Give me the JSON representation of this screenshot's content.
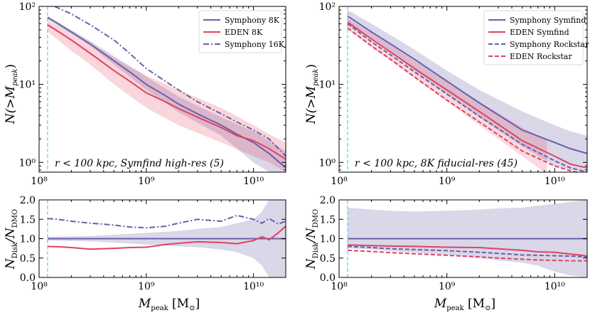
{
  "chart_data": [
    {
      "id": "top-left",
      "type": "line",
      "xscale": "log",
      "yscale": "log",
      "xlim": [
        100000000.0,
        20000000000.0
      ],
      "ylim": [
        0.75,
        100
      ],
      "ylabel": "N(>M_peak)",
      "yticks": [
        {
          "v": 1,
          "label": "10⁰"
        },
        {
          "v": 10,
          "label": "10¹"
        },
        {
          "v": 100,
          "label": "10²"
        }
      ],
      "xticks": [
        {
          "v": 100000000.0,
          "label": "10⁸"
        },
        {
          "v": 1000000000.0,
          "label": "10⁹"
        },
        {
          "v": 10000000000.0,
          "label": "10¹⁰"
        }
      ],
      "annotation": "r < 100 kpc,  Symfind high-res (5)",
      "legend_position": "top-right",
      "series": [
        {
          "name": "Symphony 8K",
          "color": "#6a5fa8",
          "dash": "solid",
          "x": [
            120000000.0,
            150000000.0,
            200000000.0,
            300000000.0,
            500000000.0,
            700000000.0,
            1000000000.0,
            1500000000.0,
            2000000000.0,
            3000000000.0,
            5000000000.0,
            7000000000.0,
            10000000000.0,
            14000000000.0,
            20000000000.0
          ],
          "y": [
            72,
            60,
            47,
            33,
            20,
            14.5,
            10,
            7.2,
            5.6,
            4.2,
            3.0,
            2.3,
            1.8,
            1.3,
            0.85
          ]
        },
        {
          "name": "EDEN 8K",
          "color": "#e0435f",
          "dash": "solid",
          "x": [
            120000000.0,
            150000000.0,
            200000000.0,
            300000000.0,
            500000000.0,
            700000000.0,
            1000000000.0,
            1500000000.0,
            2000000000.0,
            3000000000.0,
            5000000000.0,
            7000000000.0,
            10000000000.0,
            14000000000.0,
            20000000000.0
          ],
          "y": [
            58,
            48,
            37,
            25,
            15,
            11,
            7.8,
            6.0,
            4.9,
            3.8,
            2.8,
            2.2,
            1.9,
            1.5,
            1.1
          ]
        },
        {
          "name": "Symphony 16K",
          "color": "#6a5fa8",
          "dash": "dashdot",
          "x": [
            140000000.0,
            200000000.0,
            300000000.0,
            500000000.0,
            700000000.0,
            1000000000.0,
            1500000000.0,
            2000000000.0,
            3000000000.0,
            5000000000.0,
            7000000000.0,
            10000000000.0,
            14000000000.0,
            20000000000.0
          ],
          "y": [
            100,
            80,
            58,
            37,
            25,
            16,
            11,
            8.5,
            6.0,
            4.2,
            3.3,
            2.6,
            2.0,
            1.2
          ]
        }
      ],
      "bands": [
        {
          "name": "Symphony 8K spread",
          "color": "#6a5fa8",
          "opacity": 0.25,
          "x": [
            120000000.0,
            200000000.0,
            300000000.0,
            500000000.0,
            1000000000.0,
            2000000000.0,
            5000000000.0,
            10000000000.0,
            14000000000.0,
            20000000000.0
          ],
          "lo": [
            68,
            45,
            31,
            18,
            8.5,
            4.4,
            2.2,
            1.0,
            0.75,
            0.75
          ],
          "hi": [
            76,
            50,
            36,
            23,
            12.5,
            7.0,
            3.8,
            2.5,
            1.9,
            1.4
          ]
        },
        {
          "name": "EDEN 8K spread",
          "color": "#e0435f",
          "opacity": 0.22,
          "x": [
            120000000.0,
            200000000.0,
            300000000.0,
            500000000.0,
            1000000000.0,
            2000000000.0,
            5000000000.0,
            10000000000.0,
            14000000000.0,
            20000000000.0
          ],
          "lo": [
            48,
            27,
            18,
            10,
            5.0,
            3.0,
            1.8,
            1.2,
            1.0,
            0.75
          ],
          "hi": [
            66,
            47,
            34,
            22,
            13,
            8.5,
            5.0,
            3.0,
            2.3,
            1.8
          ]
        }
      ]
    },
    {
      "id": "top-right",
      "type": "line",
      "xscale": "log",
      "yscale": "log",
      "xlim": [
        100000000.0,
        20000000000.0
      ],
      "ylim": [
        0.75,
        100
      ],
      "ylabel": "N(>M_peak)",
      "yticks": [
        {
          "v": 1,
          "label": "10⁰"
        },
        {
          "v": 10,
          "label": "10¹"
        },
        {
          "v": 100,
          "label": "10²"
        }
      ],
      "xticks": [
        {
          "v": 100000000.0,
          "label": "10⁸"
        },
        {
          "v": 1000000000.0,
          "label": "10⁹"
        },
        {
          "v": 10000000000.0,
          "label": "10¹⁰"
        }
      ],
      "annotation": "r < 100 kpc,  8K fiducial-res (45)",
      "legend_position": "top-right",
      "series": [
        {
          "name": "Symphony Symfind",
          "color": "#6a5fa8",
          "dash": "solid",
          "x": [
            120000000.0,
            200000000.0,
            300000000.0,
            500000000.0,
            1000000000.0,
            2000000000.0,
            5000000000.0,
            10000000000.0,
            14000000000.0,
            20000000000.0
          ],
          "y": [
            75,
            47,
            33,
            21,
            11,
            5.8,
            2.6,
            1.8,
            1.5,
            1.3
          ]
        },
        {
          "name": "EDEN Symfind",
          "color": "#e0435f",
          "dash": "solid",
          "x": [
            120000000.0,
            200000000.0,
            300000000.0,
            500000000.0,
            1000000000.0,
            2000000000.0,
            5000000000.0,
            10000000000.0,
            14000000000.0,
            20000000000.0
          ],
          "y": [
            63,
            38,
            26,
            16,
            8.5,
            4.5,
            1.9,
            1.2,
            0.95,
            0.85
          ]
        },
        {
          "name": "Symphony Rockstar",
          "color": "#6a5fa8",
          "dash": "dashed",
          "x": [
            120000000.0,
            200000000.0,
            300000000.0,
            500000000.0,
            1000000000.0,
            2000000000.0,
            5000000000.0,
            10000000000.0,
            14000000000.0,
            20000000000.0
          ],
          "y": [
            60,
            35,
            24,
            14.5,
            7.5,
            3.9,
            1.7,
            1.05,
            0.85,
            0.75
          ]
        },
        {
          "name": "EDEN Rockstar",
          "color": "#e0435f",
          "dash": "dashed",
          "x": [
            120000000.0,
            200000000.0,
            300000000.0,
            500000000.0,
            1000000000.0,
            2000000000.0,
            5000000000.0,
            10000000000.0,
            14000000000.0,
            20000000000.0
          ],
          "y": [
            53,
            31,
            21,
            12.5,
            6.3,
            3.3,
            1.4,
            0.9,
            0.78,
            0.7
          ]
        }
      ],
      "bands": [
        {
          "name": "Symphony spread",
          "color": "#6a5fa8",
          "opacity": 0.25,
          "x": [
            120000000.0,
            200000000.0,
            300000000.0,
            500000000.0,
            1000000000.0,
            2000000000.0,
            5000000000.0,
            10000000000.0,
            14000000000.0,
            20000000000.0
          ],
          "lo": [
            58,
            38,
            26,
            15,
            7.5,
            3.8,
            1.6,
            0.9,
            0.8,
            0.75
          ],
          "hi": [
            90,
            60,
            43,
            28,
            15,
            8.5,
            4.5,
            3.0,
            2.5,
            2.2
          ]
        },
        {
          "name": "EDEN spread",
          "color": "#e0435f",
          "opacity": 0.2,
          "x": [
            120000000.0,
            200000000.0,
            300000000.0,
            500000000.0,
            1000000000.0,
            2000000000.0,
            5000000000.0,
            8000000000.0,
            8500000000.0
          ],
          "lo": [
            50,
            30,
            20,
            12,
            6.0,
            3.0,
            1.2,
            0.75,
            0.75
          ],
          "hi": [
            70,
            45,
            32,
            20,
            11,
            6.0,
            2.8,
            2.0,
            1.9
          ]
        }
      ]
    },
    {
      "id": "bottom-left",
      "type": "line",
      "xscale": "log",
      "yscale": "linear",
      "xlim": [
        100000000.0,
        20000000000.0
      ],
      "ylim": [
        0,
        2
      ],
      "xlabel": "M_peak [M_⊙]",
      "ylabel": "N_Disk / N_DMO",
      "yticks": [
        {
          "v": 0,
          "label": "0.0"
        },
        {
          "v": 0.5,
          "label": "0.5"
        },
        {
          "v": 1,
          "label": "1.0"
        },
        {
          "v": 1.5,
          "label": "1.5"
        },
        {
          "v": 2,
          "label": "2.0"
        }
      ],
      "xticks": [
        {
          "v": 100000000.0,
          "label": "10⁸"
        },
        {
          "v": 1000000000.0,
          "label": "10⁹"
        },
        {
          "v": 10000000000.0,
          "label": "10¹⁰"
        }
      ],
      "series": [
        {
          "name": "Symphony 8K",
          "color": "#6a5fa8",
          "dash": "solid",
          "x": [
            120000000.0,
            20000000000.0
          ],
          "y": [
            1.0,
            1.0
          ]
        },
        {
          "name": "EDEN 8K",
          "color": "#e0435f",
          "dash": "solid",
          "x": [
            120000000.0,
            150000000.0,
            200000000.0,
            300000000.0,
            500000000.0,
            700000000.0,
            1000000000.0,
            1500000000.0,
            2000000000.0,
            3000000000.0,
            5000000000.0,
            7000000000.0,
            10000000000.0,
            12000000000.0,
            14000000000.0,
            17000000000.0,
            20000000000.0
          ],
          "y": [
            0.8,
            0.79,
            0.77,
            0.73,
            0.75,
            0.77,
            0.78,
            0.85,
            0.88,
            0.92,
            0.9,
            0.87,
            0.95,
            1.05,
            0.97,
            1.15,
            1.32
          ]
        },
        {
          "name": "Symphony 16K",
          "color": "#6a5fa8",
          "dash": "dashdot",
          "x": [
            120000000.0,
            150000000.0,
            200000000.0,
            300000000.0,
            500000000.0,
            700000000.0,
            1000000000.0,
            1500000000.0,
            2000000000.0,
            3000000000.0,
            5000000000.0,
            7000000000.0,
            10000000000.0,
            12000000000.0,
            14000000000.0,
            17000000000.0,
            20000000000.0
          ],
          "y": [
            1.52,
            1.5,
            1.45,
            1.4,
            1.35,
            1.3,
            1.28,
            1.32,
            1.4,
            1.5,
            1.45,
            1.6,
            1.5,
            1.4,
            1.52,
            1.38,
            1.45
          ]
        }
      ],
      "bands": [
        {
          "name": "Symphony 8K ratio spread",
          "color": "#6a5fa8",
          "opacity": 0.25,
          "x": [
            120000000.0,
            200000000.0,
            300000000.0,
            500000000.0,
            1000000000.0,
            2000000000.0,
            3000000000.0,
            5000000000.0,
            7000000000.0,
            10000000000.0,
            12000000000.0,
            14000000000.0,
            17000000000.0,
            20000000000.0
          ],
          "lo": [
            0.95,
            0.94,
            0.93,
            0.9,
            0.85,
            0.8,
            0.78,
            0.72,
            0.65,
            0.5,
            0.3,
            0.0,
            0.0,
            0.0
          ],
          "hi": [
            1.05,
            1.06,
            1.07,
            1.1,
            1.15,
            1.2,
            1.25,
            1.3,
            1.4,
            1.5,
            1.7,
            2.0,
            2.0,
            2.0
          ]
        }
      ]
    },
    {
      "id": "bottom-right",
      "type": "line",
      "xscale": "log",
      "yscale": "linear",
      "xlim": [
        100000000.0,
        20000000000.0
      ],
      "ylim": [
        0,
        2
      ],
      "xlabel": "M_peak [M_⊙]",
      "ylabel": "N_Disk / N_DMO",
      "yticks": [
        {
          "v": 0,
          "label": "0.0"
        },
        {
          "v": 0.5,
          "label": "0.5"
        },
        {
          "v": 1,
          "label": "1.0"
        },
        {
          "v": 1.5,
          "label": "1.5"
        },
        {
          "v": 2,
          "label": "2.0"
        }
      ],
      "xticks": [
        {
          "v": 100000000.0,
          "label": "10⁸"
        },
        {
          "v": 1000000000.0,
          "label": "10⁹"
        },
        {
          "v": 10000000000.0,
          "label": "10¹⁰"
        }
      ],
      "series": [
        {
          "name": "Symphony Symfind",
          "color": "#6a5fa8",
          "dash": "solid",
          "x": [
            120000000.0,
            20000000000.0
          ],
          "y": [
            1.0,
            1.0
          ]
        },
        {
          "name": "EDEN Symfind",
          "color": "#e0435f",
          "dash": "solid",
          "x": [
            120000000.0,
            200000000.0,
            300000000.0,
            500000000.0,
            1000000000.0,
            2000000000.0,
            3000000000.0,
            5000000000.0,
            7000000000.0,
            10000000000.0,
            14000000000.0,
            17000000000.0,
            20000000000.0
          ],
          "y": [
            0.84,
            0.82,
            0.81,
            0.8,
            0.78,
            0.77,
            0.74,
            0.7,
            0.66,
            0.65,
            0.6,
            0.58,
            0.55
          ]
        },
        {
          "name": "Symphony Rockstar",
          "color": "#6a5fa8",
          "dash": "dashed",
          "x": [
            120000000.0,
            200000000.0,
            300000000.0,
            500000000.0,
            1000000000.0,
            2000000000.0,
            3000000000.0,
            5000000000.0,
            7000000000.0,
            10000000000.0,
            14000000000.0,
            20000000000.0
          ],
          "y": [
            0.8,
            0.77,
            0.74,
            0.72,
            0.69,
            0.65,
            0.62,
            0.58,
            0.57,
            0.56,
            0.55,
            0.53
          ]
        },
        {
          "name": "EDEN Rockstar",
          "color": "#e0435f",
          "dash": "dashed",
          "x": [
            120000000.0,
            200000000.0,
            300000000.0,
            500000000.0,
            1000000000.0,
            2000000000.0,
            3000000000.0,
            5000000000.0,
            7000000000.0,
            10000000000.0,
            14000000000.0,
            20000000000.0
          ],
          "y": [
            0.7,
            0.67,
            0.64,
            0.61,
            0.57,
            0.53,
            0.5,
            0.47,
            0.45,
            0.44,
            0.43,
            0.43
          ]
        }
      ],
      "bands": [
        {
          "name": "Symphony ratio spread",
          "color": "#6a5fa8",
          "opacity": 0.25,
          "x": [
            120000000.0,
            200000000.0,
            300000000.0,
            500000000.0,
            1000000000.0,
            2000000000.0,
            3000000000.0,
            5000000000.0,
            7000000000.0,
            10000000000.0,
            14000000000.0,
            20000000000.0
          ],
          "lo": [
            0.75,
            0.72,
            0.68,
            0.64,
            0.58,
            0.5,
            0.44,
            0.38,
            0.3,
            0.15,
            0.05,
            0.0
          ],
          "hi": [
            1.8,
            1.75,
            1.72,
            1.7,
            1.72,
            1.75,
            1.78,
            1.8,
            1.85,
            1.9,
            1.95,
            2.0
          ]
        }
      ]
    }
  ],
  "reference_line": {
    "x": 120000000.0,
    "color": "#5fd3e6"
  },
  "axis_labels": {
    "top_y_main": "N(>M",
    "top_y_sub": "peak",
    "top_y_end": ")",
    "bottom_y_num": "N",
    "bottom_y_num_sub": "Disk",
    "bottom_y_sep": "/N",
    "bottom_y_den_sub": "DMO",
    "x_main": "M",
    "x_sub": "peak",
    "x_unit": "[M",
    "x_unit_sub": "⊙",
    "x_unit_end": "]"
  }
}
